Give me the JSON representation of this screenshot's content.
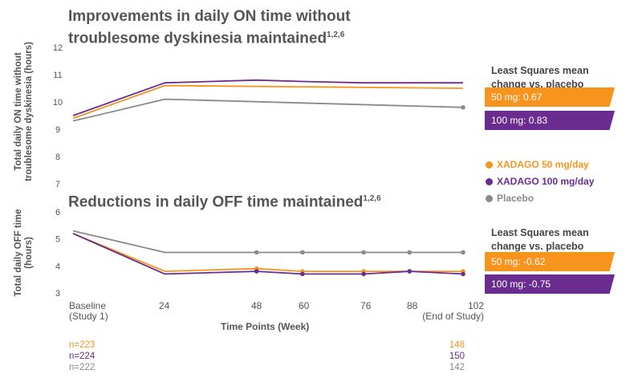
{
  "colors": {
    "orange": "#F7941D",
    "purple": "#6B2C8F",
    "gray": "#8A8A8A",
    "text": "#555555"
  },
  "chart_data": [
    {
      "type": "line",
      "title": "Improvements in daily ON time without troublesome dyskinesia maintained",
      "title_line1": "Improvements in daily ON time without",
      "title_line2": "troublesome dyskinesia maintained",
      "title_sup": "1,2,6",
      "ylabel_line1": "Total daily ON time without",
      "ylabel_line2": "troublesome dyskinesia (hours)",
      "ylim": [
        7,
        12
      ],
      "yticks": [
        "7",
        "8",
        "9",
        "10",
        "11",
        "12"
      ],
      "x": [
        0,
        24,
        48,
        60,
        76,
        88,
        102
      ],
      "series": [
        {
          "name": "XADAGO 50 mg/day",
          "color": "#F7941D",
          "x": [
            0,
            24,
            102
          ],
          "values": [
            9.4,
            10.6,
            10.5
          ],
          "markers": []
        },
        {
          "name": "XADAGO 100 mg/day",
          "color": "#6B2C8F",
          "x": [
            0,
            24,
            48,
            60,
            76,
            88,
            102
          ],
          "values": [
            9.5,
            10.7,
            10.8,
            10.75,
            10.7,
            10.7,
            10.7
          ],
          "markers": []
        },
        {
          "name": "Placebo",
          "color": "#8A8A8A",
          "x": [
            0,
            24,
            102
          ],
          "values": [
            9.3,
            10.1,
            9.8
          ],
          "markers": [
            102
          ]
        }
      ]
    },
    {
      "type": "line",
      "title": "Reductions in daily OFF time maintained",
      "title_line1": "Reductions in daily OFF time maintained",
      "title_sup": "1,2,6",
      "ylabel_line1": "Total daily OFF time",
      "ylabel_line2": "(hours)",
      "ylim": [
        3,
        6
      ],
      "yticks": [
        "3",
        "4",
        "5",
        "6"
      ],
      "x": [
        0,
        24,
        48,
        60,
        76,
        88,
        102
      ],
      "xticks": [
        "Baseline",
        "24",
        "48",
        "60",
        "76",
        "88",
        "102"
      ],
      "xtick_sub": {
        "baseline": "(Study 1)",
        "end": "(End of Study)"
      },
      "xlabel": "Time Points (Week)",
      "series": [
        {
          "name": "Placebo",
          "color": "#8A8A8A",
          "x": [
            0,
            24,
            48,
            60,
            76,
            88,
            102
          ],
          "values": [
            5.3,
            4.5,
            4.5,
            4.5,
            4.5,
            4.5,
            4.5
          ],
          "markers": [
            48,
            60,
            76,
            88,
            102
          ]
        },
        {
          "name": "XADAGO 50 mg/day",
          "color": "#F7941D",
          "x": [
            0,
            24,
            48,
            60,
            76,
            88,
            102
          ],
          "values": [
            5.2,
            3.8,
            3.9,
            3.8,
            3.8,
            3.8,
            3.8
          ],
          "markers": [
            48,
            60,
            76,
            88,
            102
          ]
        },
        {
          "name": "XADAGO 100 mg/day",
          "color": "#6B2C8F",
          "x": [
            0,
            24,
            48,
            60,
            76,
            88,
            102
          ],
          "values": [
            5.2,
            3.7,
            3.8,
            3.7,
            3.7,
            3.8,
            3.7
          ],
          "markers": [
            48,
            60,
            76,
            88,
            102
          ]
        }
      ]
    }
  ],
  "legend": [
    {
      "label": "XADAGO 50 mg/day",
      "color": "#F7941D"
    },
    {
      "label": "XADAGO 100 mg/day",
      "color": "#6B2C8F"
    },
    {
      "label": "Placebo",
      "color": "#8A8A8A"
    }
  ],
  "ls_panels": [
    {
      "heading_line1": "Least Squares mean",
      "heading_line2": "change vs. placebo",
      "badges": [
        "50 mg: 0.67",
        "100 mg: 0.83"
      ]
    },
    {
      "heading_line1": "Least Squares mean",
      "heading_line2": "change vs. placebo",
      "badges": [
        "50 mg: -0.62",
        "100 mg: -0.75"
      ]
    }
  ],
  "n_rows": [
    {
      "start": "n=223",
      "end": "148",
      "color": "#F7941D"
    },
    {
      "start": "n=224",
      "end": "150",
      "color": "#6B2C8F"
    },
    {
      "start": "n=222",
      "end": "142",
      "color": "#8A8A8A"
    }
  ]
}
